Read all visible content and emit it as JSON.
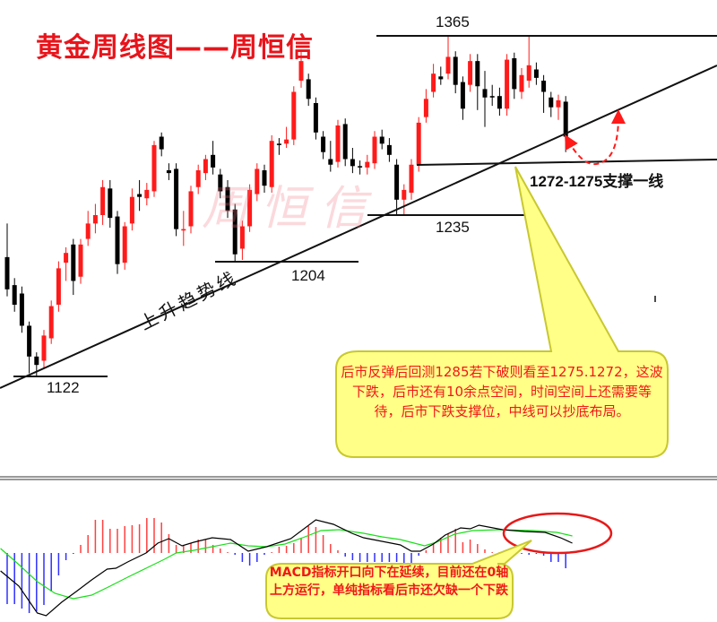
{
  "title": "黄金周线图——周恒信",
  "watermark": "周恒信",
  "colors": {
    "up": "#ff1a1a",
    "down": "#000000",
    "annotation": "#e8141b",
    "bubble": "#ffff88",
    "bubble_border": "#c8c830",
    "dif": "#000000",
    "dea": "#18e018",
    "hist_pos": "#ff4040",
    "hist_neg": "#3030ff"
  },
  "annotations": {
    "high_level": "1365",
    "level_1235": "1235",
    "level_1204": "1204",
    "level_1122": "1122",
    "support": "1272-1275支撑一线",
    "trendline": "上升趋势线"
  },
  "callouts": {
    "price": "后市反弹后回测1285若下破则看至1275.1272，这波下跌，后市还有10余点空间，时间空间上还需要等待，后市下跌支撑位，中线可以抄底布局。",
    "macd": "MACD指标开口向下在延续，目前还在0轴上方运行，单纯指标看后市还欠缺一个下跌"
  },
  "chart_data": [
    {
      "type": "candlestick",
      "title": "黄金周线图——周恒信",
      "ylim": [
        1100,
        1405
      ],
      "ohlc_columns": [
        "open",
        "close",
        "high",
        "low"
      ],
      "ohlc": [
        [
          1207,
          1184,
          1231,
          1179
        ],
        [
          1187,
          1173,
          1192,
          1168
        ],
        [
          1181,
          1158,
          1186,
          1153
        ],
        [
          1158,
          1136,
          1161,
          1124
        ],
        [
          1136,
          1130,
          1139,
          1122
        ],
        [
          1133,
          1151,
          1155,
          1128
        ],
        [
          1149,
          1172,
          1176,
          1145
        ],
        [
          1173,
          1199,
          1204,
          1168
        ],
        [
          1203,
          1210,
          1214,
          1190
        ],
        [
          1216,
          1190,
          1220,
          1180
        ],
        [
          1193,
          1216,
          1220,
          1188
        ],
        [
          1220,
          1231,
          1240,
          1215
        ],
        [
          1231,
          1237,
          1245,
          1224
        ],
        [
          1237,
          1257,
          1262,
          1230
        ],
        [
          1256,
          1235,
          1262,
          1228
        ],
        [
          1236,
          1202,
          1240,
          1195
        ],
        [
          1203,
          1229,
          1232,
          1198
        ],
        [
          1231,
          1250,
          1256,
          1226
        ],
        [
          1252,
          1250,
          1262,
          1240
        ],
        [
          1249,
          1255,
          1260,
          1244
        ],
        [
          1254,
          1287,
          1290,
          1250
        ],
        [
          1293,
          1284,
          1296,
          1279
        ],
        [
          1269,
          1267,
          1274,
          1262
        ],
        [
          1270,
          1227,
          1274,
          1222
        ],
        [
          1226,
          1227,
          1240,
          1215
        ],
        [
          1229,
          1254,
          1258,
          1224
        ],
        [
          1257,
          1269,
          1273,
          1252
        ],
        [
          1267,
          1277,
          1280,
          1262
        ],
        [
          1280,
          1271,
          1290,
          1266
        ],
        [
          1266,
          1254,
          1270,
          1249
        ],
        [
          1257,
          1240,
          1262,
          1235
        ],
        [
          1241,
          1209,
          1245,
          1204
        ],
        [
          1213,
          1229,
          1233,
          1205
        ],
        [
          1229,
          1255,
          1259,
          1225
        ],
        [
          1252,
          1270,
          1274,
          1247
        ],
        [
          1269,
          1258,
          1273,
          1253
        ],
        [
          1257,
          1290,
          1294,
          1253
        ],
        [
          1288,
          1287,
          1292,
          1280
        ],
        [
          1288,
          1291,
          1300,
          1285
        ],
        [
          1291,
          1325,
          1329,
          1287
        ],
        [
          1333,
          1347,
          1355,
          1328
        ],
        [
          1334,
          1320,
          1338,
          1315
        ],
        [
          1317,
          1296,
          1321,
          1291
        ],
        [
          1293,
          1282,
          1297,
          1277
        ],
        [
          1277,
          1273,
          1290,
          1268
        ],
        [
          1275,
          1301,
          1305,
          1271
        ],
        [
          1302,
          1277,
          1306,
          1272
        ],
        [
          1277,
          1272,
          1285,
          1267
        ],
        [
          1272,
          1271,
          1276,
          1266
        ],
        [
          1271,
          1275,
          1280,
          1266
        ],
        [
          1274,
          1293,
          1297,
          1270
        ],
        [
          1293,
          1288,
          1298,
          1284
        ],
        [
          1287,
          1280,
          1292,
          1275
        ],
        [
          1273,
          1248,
          1277,
          1237
        ],
        [
          1248,
          1255,
          1259,
          1237
        ],
        [
          1253,
          1273,
          1277,
          1248
        ],
        [
          1273,
          1303,
          1307,
          1268
        ],
        [
          1307,
          1320,
          1327,
          1303
        ],
        [
          1325,
          1338,
          1345,
          1321
        ],
        [
          1336,
          1334,
          1343,
          1330
        ],
        [
          1338,
          1350,
          1365,
          1334
        ],
        [
          1350,
          1330,
          1354,
          1324
        ],
        [
          1332,
          1313,
          1336,
          1305
        ],
        [
          1330,
          1347,
          1352,
          1325
        ],
        [
          1347,
          1329,
          1352,
          1312
        ],
        [
          1327,
          1321,
          1340,
          1300
        ],
        [
          1322,
          1321,
          1330,
          1315
        ],
        [
          1322,
          1313,
          1328,
          1308
        ],
        [
          1313,
          1348,
          1352,
          1308
        ],
        [
          1349,
          1327,
          1353,
          1320
        ],
        [
          1325,
          1337,
          1342,
          1320
        ],
        [
          1333,
          1344,
          1365,
          1328
        ],
        [
          1341,
          1335,
          1346,
          1330
        ],
        [
          1333,
          1325,
          1337,
          1310
        ],
        [
          1321,
          1314,
          1325,
          1307
        ],
        [
          1314,
          1319,
          1323,
          1305
        ],
        [
          1318,
          1293,
          1322,
          1282
        ]
      ],
      "reference_lines": [
        1365,
        1235,
        1204,
        1122,
        1273.5
      ]
    },
    {
      "type": "macd",
      "histogram": [
        -57,
        -57,
        -62,
        -67,
        -65,
        -58,
        -43,
        -25,
        -8,
        -1,
        9,
        20,
        37,
        37,
        27,
        27,
        30,
        31,
        32,
        39,
        39,
        34,
        21,
        9,
        9,
        11,
        15,
        15,
        9,
        5,
        1,
        -2,
        -10,
        -14,
        -10,
        -2,
        1,
        7,
        8,
        11,
        16,
        30,
        29,
        20,
        10,
        3,
        -4,
        -8,
        -10,
        -10,
        -10,
        -10,
        -10,
        -10,
        -14,
        -14,
        -3,
        3,
        10,
        17,
        22,
        27,
        12,
        15,
        10,
        4,
        1,
        1,
        1,
        -1,
        -1,
        -2,
        -1,
        -3,
        -10,
        -10,
        -17
      ],
      "dif": [
        [
          -0.9,
          -20
        ],
        [
          1.6,
          -37
        ],
        [
          4.1,
          -67
        ],
        [
          5.3,
          -70
        ],
        [
          7.4,
          -55
        ],
        [
          9.4,
          -43
        ],
        [
          11.5,
          -30
        ],
        [
          13.6,
          -18
        ],
        [
          14.8,
          -17
        ],
        [
          16.4,
          -10
        ],
        [
          18.9,
          0
        ],
        [
          20.5,
          11
        ],
        [
          22,
          16
        ],
        [
          23.8,
          8
        ],
        [
          25.4,
          12
        ],
        [
          27.9,
          17
        ],
        [
          30.4,
          15
        ],
        [
          32.8,
          2
        ],
        [
          35.3,
          7
        ],
        [
          38.6,
          16
        ],
        [
          42,
          37
        ],
        [
          44.4,
          32
        ],
        [
          46.9,
          22
        ],
        [
          48.5,
          17
        ],
        [
          51,
          13
        ],
        [
          53.5,
          9
        ],
        [
          55,
          2
        ],
        [
          56.2,
          2
        ],
        [
          58,
          10
        ],
        [
          59.6,
          20
        ],
        [
          61.7,
          28
        ],
        [
          63,
          27
        ],
        [
          64.2,
          31
        ],
        [
          67.4,
          26
        ],
        [
          70.4,
          24
        ],
        [
          73.2,
          23
        ],
        [
          75.3,
          17
        ],
        [
          76.9,
          11
        ]
      ],
      "dea": [
        [
          -0.9,
          5
        ],
        [
          1.6,
          -13
        ],
        [
          4.1,
          -32
        ],
        [
          6.5,
          -45
        ],
        [
          9,
          -51
        ],
        [
          11.5,
          -47
        ],
        [
          14,
          -37
        ],
        [
          16.4,
          -27
        ],
        [
          18.9,
          -17
        ],
        [
          21.4,
          -7
        ],
        [
          23,
          0
        ],
        [
          25.4,
          3
        ],
        [
          27.9,
          7
        ],
        [
          30.4,
          11
        ],
        [
          32.8,
          8
        ],
        [
          35.3,
          7
        ],
        [
          37.8,
          10
        ],
        [
          40.2,
          17
        ],
        [
          42.7,
          25
        ],
        [
          45.2,
          26
        ],
        [
          48.5,
          22
        ],
        [
          51,
          18
        ],
        [
          53.5,
          15
        ],
        [
          56.8,
          8
        ],
        [
          58.4,
          12
        ],
        [
          60.9,
          21
        ],
        [
          63.3,
          25
        ],
        [
          67,
          26
        ],
        [
          71.6,
          25
        ],
        [
          74.8,
          23
        ],
        [
          76.9,
          19
        ]
      ]
    }
  ]
}
